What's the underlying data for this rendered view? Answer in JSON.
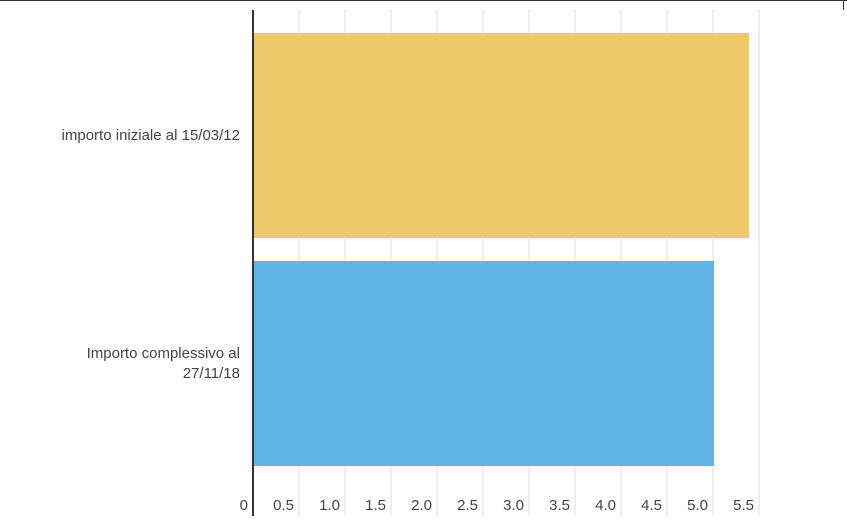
{
  "chart_data": {
    "type": "bar",
    "orientation": "horizontal",
    "categories": [
      "importo iniziale al 15/03/12",
      "Importo complessivo al 27/11/18"
    ],
    "values": [
      5.38,
      5.0
    ],
    "colors": [
      "#edc96a",
      "#5fb5e5"
    ],
    "xlim": [
      0,
      5.5
    ],
    "xticks": [
      0,
      0.5,
      {
        "value": 1,
        "label": "1.0"
      },
      1.5,
      {
        "value": 2,
        "label": "2.0"
      },
      2.5,
      {
        "value": 3,
        "label": "3.0"
      },
      3.5,
      {
        "value": 4,
        "label": "4.0"
      },
      4.5,
      {
        "value": 5,
        "label": "5.0"
      },
      5.5
    ],
    "grid": true
  }
}
